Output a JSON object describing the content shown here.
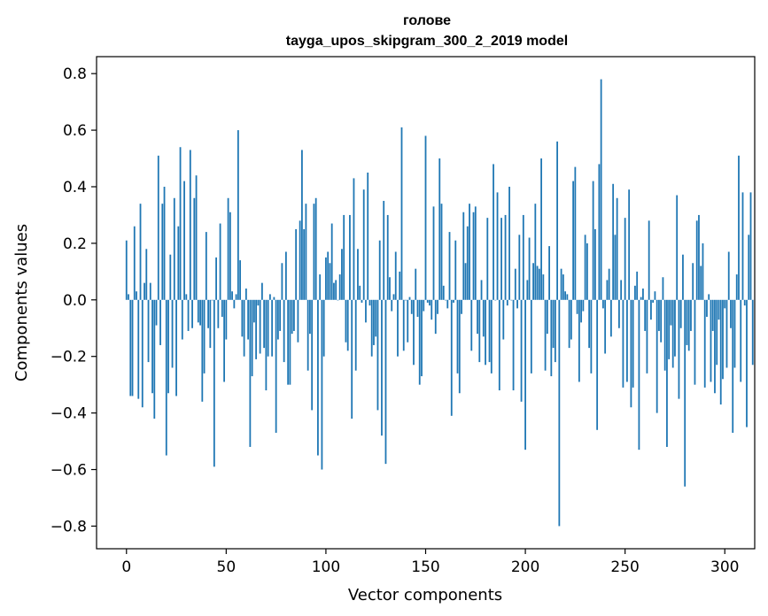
{
  "chart_data": {
    "type": "bar",
    "title": "голове",
    "subtitle": "tayga_upos_skipgram_300_2_2019 model",
    "xlabel": "Vector components",
    "ylabel": "Components values",
    "xlim": [
      -15,
      315
    ],
    "ylim": [
      -0.88,
      0.86
    ],
    "x_ticks": [
      0,
      50,
      100,
      150,
      200,
      250,
      300
    ],
    "x_tick_labels": [
      "0",
      "50",
      "100",
      "150",
      "200",
      "250",
      "300"
    ],
    "y_ticks": [
      -0.8,
      -0.6,
      -0.4,
      -0.2,
      0.0,
      0.2,
      0.4,
      0.6,
      0.8
    ],
    "y_tick_labels": [
      "−0.8",
      "−0.6",
      "−0.4",
      "−0.2",
      "0.0",
      "0.2",
      "0.4",
      "0.6",
      "0.8"
    ],
    "grid": false,
    "bar_color": "#1f77b4",
    "values": [
      0.21,
      0.02,
      -0.34,
      -0.34,
      0.26,
      0.03,
      -0.35,
      0.34,
      -0.38,
      0.06,
      0.18,
      -0.22,
      0.06,
      -0.33,
      -0.42,
      -0.09,
      0.51,
      -0.16,
      0.34,
      0.4,
      -0.55,
      -0.33,
      0.16,
      -0.24,
      0.36,
      -0.34,
      0.26,
      0.54,
      -0.14,
      0.42,
      0.02,
      -0.11,
      0.53,
      -0.1,
      0.36,
      0.44,
      -0.08,
      -0.09,
      -0.36,
      -0.26,
      0.24,
      -0.1,
      -0.17,
      0.0,
      -0.59,
      0.15,
      -0.1,
      0.27,
      -0.06,
      -0.29,
      -0.14,
      0.36,
      0.31,
      0.03,
      -0.03,
      0.02,
      0.6,
      0.14,
      -0.13,
      -0.2,
      0.04,
      -0.14,
      -0.52,
      -0.27,
      -0.08,
      -0.21,
      -0.02,
      -0.19,
      0.06,
      -0.17,
      -0.32,
      -0.2,
      0.02,
      -0.2,
      0.01,
      -0.47,
      -0.14,
      -0.11,
      0.13,
      -0.22,
      0.17,
      -0.3,
      -0.3,
      -0.12,
      -0.11,
      0.25,
      -0.15,
      0.28,
      0.53,
      0.25,
      0.34,
      -0.25,
      -0.12,
      -0.39,
      0.34,
      0.36,
      -0.55,
      0.09,
      -0.6,
      -0.2,
      0.15,
      0.17,
      0.13,
      0.27,
      0.06,
      0.07,
      0.0,
      0.09,
      0.18,
      0.3,
      -0.15,
      -0.18,
      0.3,
      -0.42,
      0.43,
      -0.25,
      0.18,
      0.05,
      -0.01,
      0.39,
      -0.08,
      0.45,
      -0.02,
      -0.2,
      -0.16,
      -0.13,
      -0.39,
      0.21,
      -0.48,
      0.35,
      -0.58,
      0.3,
      0.08,
      -0.04,
      0.02,
      0.17,
      -0.2,
      0.1,
      0.61,
      -0.18,
      0.0,
      -0.15,
      0.01,
      -0.05,
      -0.23,
      0.11,
      -0.06,
      -0.3,
      -0.27,
      -0.04,
      0.58,
      -0.01,
      -0.02,
      -0.07,
      0.33,
      -0.12,
      -0.05,
      0.5,
      0.34,
      0.05,
      0.0,
      -0.03,
      0.24,
      -0.41,
      -0.01,
      0.21,
      -0.26,
      -0.33,
      -0.05,
      0.31,
      0.13,
      0.26,
      0.34,
      -0.18,
      0.31,
      0.33,
      -0.12,
      -0.22,
      0.07,
      -0.13,
      -0.23,
      0.29,
      -0.22,
      -0.26,
      0.48,
      0.0,
      0.38,
      -0.32,
      0.29,
      -0.14,
      0.3,
      -0.02,
      0.4,
      0.0,
      -0.32,
      0.11,
      -0.03,
      0.23,
      -0.36,
      0.3,
      -0.53,
      0.07,
      0.22,
      -0.26,
      0.13,
      0.34,
      0.12,
      0.11,
      0.5,
      0.09,
      -0.25,
      -0.12,
      0.19,
      -0.27,
      -0.17,
      -0.22,
      0.56,
      -0.8,
      0.11,
      0.09,
      0.03,
      0.02,
      -0.17,
      -0.14,
      0.42,
      0.47,
      -0.05,
      -0.29,
      -0.08,
      -0.04,
      0.23,
      0.2,
      -0.17,
      -0.26,
      0.42,
      0.25,
      -0.46,
      0.48,
      0.78,
      -0.03,
      -0.19,
      0.07,
      0.11,
      -0.13,
      0.41,
      0.23,
      0.36,
      -0.1,
      0.07,
      -0.31,
      0.29,
      -0.29,
      0.39,
      -0.38,
      -0.31,
      0.05,
      0.1,
      -0.53,
      0.01,
      0.04,
      -0.11,
      -0.26,
      0.28,
      -0.07,
      -0.01,
      0.03,
      -0.4,
      -0.11,
      -0.15,
      0.08,
      -0.25,
      -0.52,
      -0.21,
      -0.09,
      -0.24,
      -0.2,
      0.37,
      -0.35,
      -0.1,
      0.16,
      -0.66,
      -0.16,
      -0.18,
      -0.11,
      0.13,
      -0.3,
      0.28,
      0.3,
      0.12,
      0.2,
      -0.31,
      -0.06,
      0.02,
      -0.29,
      -0.11,
      -0.33,
      -0.23,
      -0.07,
      -0.37,
      -0.28,
      -0.03,
      -0.24,
      0.17,
      -0.1,
      -0.47,
      -0.24,
      0.09,
      0.51,
      -0.29,
      0.38,
      -0.02,
      -0.45,
      0.23,
      0.38,
      -0.23
    ]
  }
}
